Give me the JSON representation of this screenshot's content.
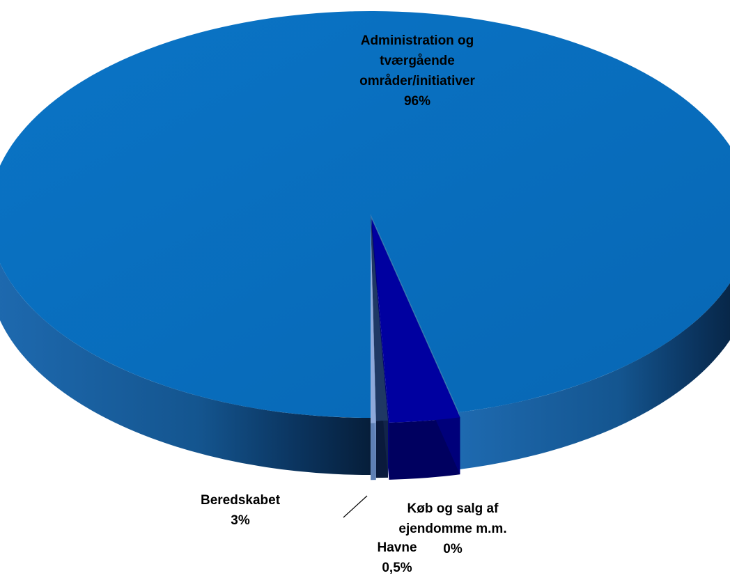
{
  "chart_data": {
    "type": "pie",
    "style": "3d-exploded",
    "legend": "none",
    "slices": [
      {
        "label_lines": [
          "Administration og",
          "tværgående",
          "områder/initiativer"
        ],
        "value_label": "96%",
        "value": 96.5,
        "color": "#0070C0"
      },
      {
        "label_lines": [
          "Beredskabet"
        ],
        "value_label": "3%",
        "value": 3.0,
        "color": "#0000A0"
      },
      {
        "label_lines": [
          "Havne"
        ],
        "value_label": "0,5%",
        "value": 0.5,
        "color": "#1F3864"
      },
      {
        "label_lines": [
          "Køb og salg af",
          "ejendomme m.m."
        ],
        "value_label": "0%",
        "value": 0.0,
        "color": "#8EA9DB"
      }
    ]
  }
}
